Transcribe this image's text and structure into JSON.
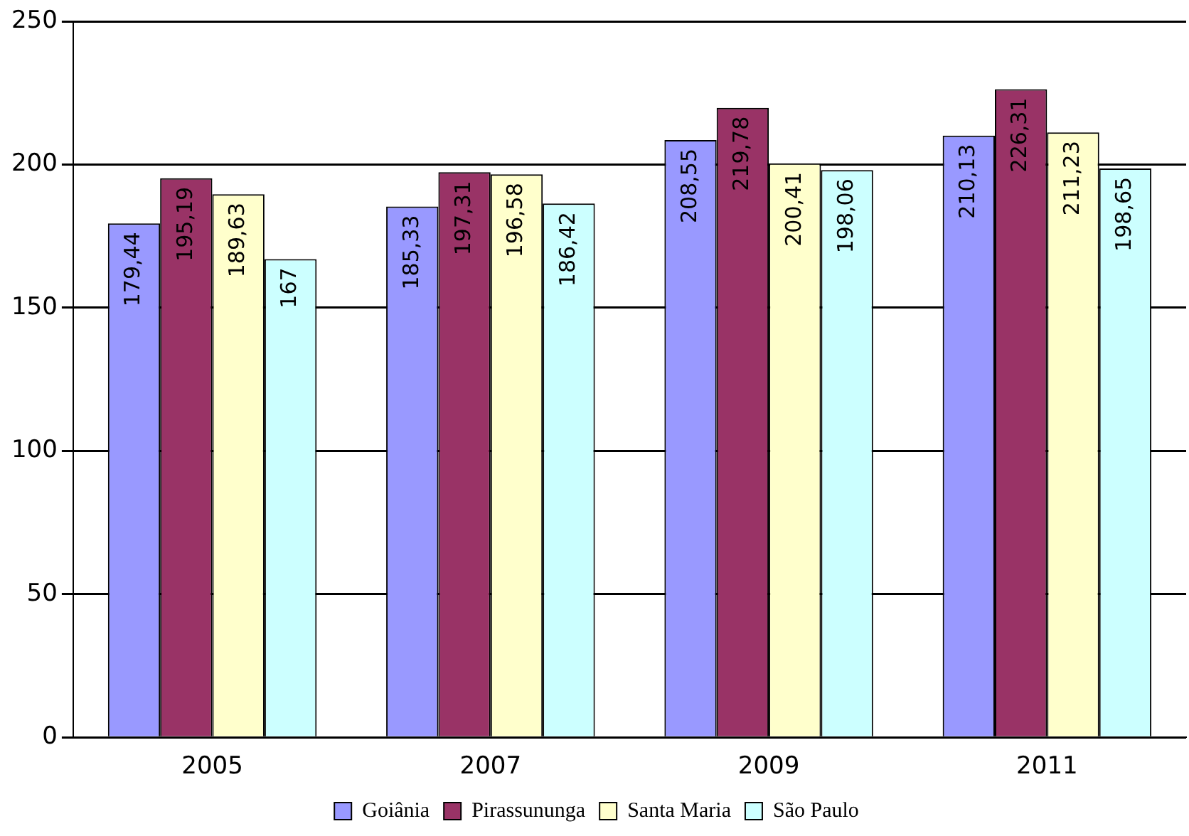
{
  "chart_data": {
    "type": "bar",
    "categories": [
      "2005",
      "2007",
      "2009",
      "2011"
    ],
    "series": [
      {
        "name": "Goiânia",
        "color": "#9999ff",
        "values": [
          179.44,
          185.33,
          208.55,
          210.13
        ],
        "value_labels": [
          "179,44",
          "185,33",
          "208,55",
          "210,13"
        ]
      },
      {
        "name": "Pirassununga",
        "color": "#993366",
        "values": [
          195.19,
          197.31,
          219.78,
          226.31
        ],
        "value_labels": [
          "195,19",
          "197,31",
          "219,78",
          "226,31"
        ]
      },
      {
        "name": "Santa Maria",
        "color": "#ffffcc",
        "values": [
          189.63,
          196.58,
          200.41,
          211.23
        ],
        "value_labels": [
          "189,63",
          "196,58",
          "200,41",
          "211,23"
        ]
      },
      {
        "name": "São Paulo",
        "color": "#ccffff",
        "values": [
          167,
          186.42,
          198.06,
          198.65
        ],
        "value_labels": [
          "167",
          "186,42",
          "198,06",
          "198,65"
        ]
      }
    ],
    "ylim": [
      0,
      250
    ],
    "yticks": [
      0,
      50,
      100,
      150,
      200,
      250
    ],
    "grid": "y",
    "legend": "bottom"
  }
}
